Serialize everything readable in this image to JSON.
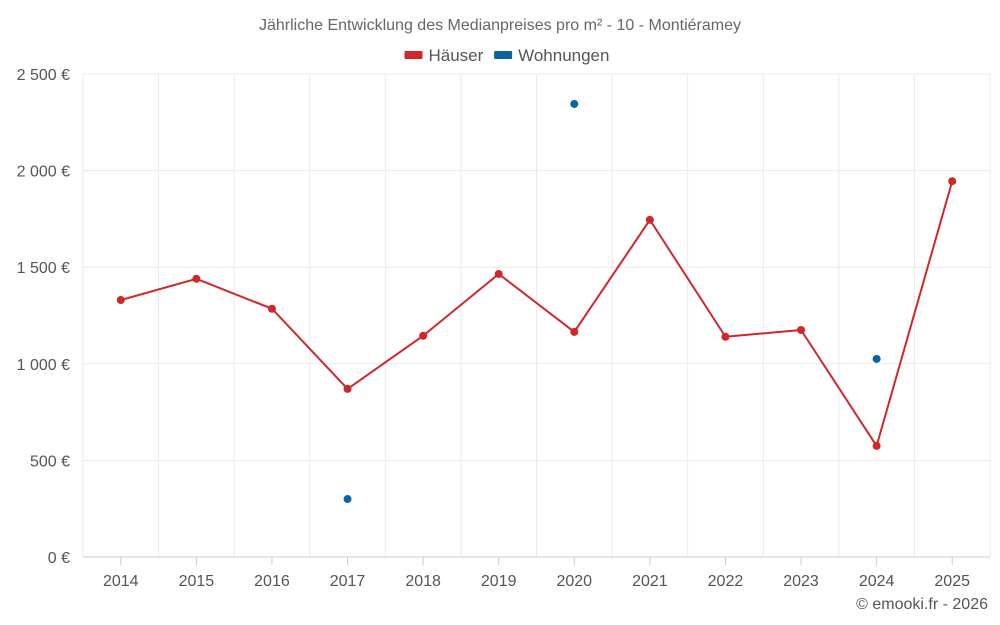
{
  "chart_data": {
    "type": "line",
    "title": "Jährliche Entwicklung des Medianpreises pro m² - 10 - Montiéramey",
    "categories": [
      "2014",
      "2015",
      "2016",
      "2017",
      "2018",
      "2019",
      "2020",
      "2021",
      "2022",
      "2023",
      "2024",
      "2025"
    ],
    "series": [
      {
        "name": "Häuser",
        "color": "#d0282a",
        "style": "line",
        "values": [
          1330,
          1440,
          1285,
          870,
          1145,
          1465,
          1165,
          1745,
          1140,
          1175,
          575,
          1945
        ]
      },
      {
        "name": "Wohnungen",
        "color": "#0b64a0",
        "style": "points",
        "values": [
          null,
          null,
          null,
          300,
          null,
          null,
          2345,
          null,
          null,
          null,
          1025,
          null
        ]
      }
    ],
    "ylim": [
      0,
      2500
    ],
    "yticks": [
      0,
      500,
      1000,
      1500,
      2000,
      2500
    ],
    "ytick_labels": [
      "0 €",
      "500 €",
      "1 000 €",
      "1 500 €",
      "2 000 €",
      "2 500 €"
    ],
    "xlabel": "",
    "ylabel": "",
    "grid": true,
    "legend_position": "top-center"
  },
  "credit": "© emooki.fr - 2026"
}
